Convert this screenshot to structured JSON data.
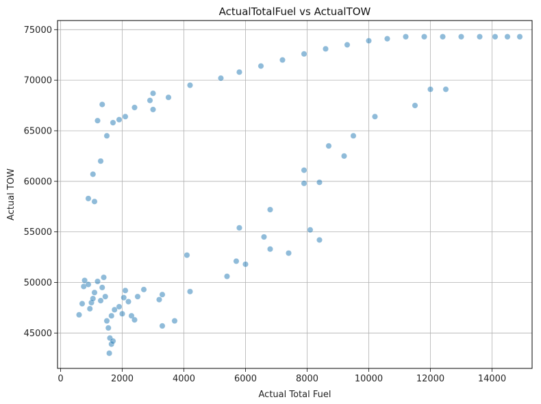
{
  "chart_data": {
    "type": "scatter",
    "title": "ActualTotalFuel vs ActualTOW",
    "xlabel": "Actual Total Fuel",
    "ylabel": "Actual TOW",
    "xlim": [
      -100,
      15300
    ],
    "ylim": [
      41500,
      75900
    ],
    "xticks": [
      0,
      2000,
      4000,
      6000,
      8000,
      10000,
      12000,
      14000
    ],
    "xtick_labels": [
      "0",
      "2000",
      "4000",
      "6000",
      "8000",
      "10000",
      "12000",
      "14000"
    ],
    "yticks": [
      45000,
      50000,
      55000,
      60000,
      65000,
      70000,
      75000
    ],
    "ytick_labels": [
      "45000",
      "50000",
      "55000",
      "60000",
      "65000",
      "70000",
      "75000"
    ],
    "grid": true,
    "marker_color": "#1f77b4",
    "marker_alpha": 0.5,
    "series": [
      {
        "points": [
          [
            600,
            46800
          ],
          [
            700,
            47900
          ],
          [
            750,
            49600
          ],
          [
            780,
            50200
          ],
          [
            900,
            49800
          ],
          [
            950,
            47400
          ],
          [
            1000,
            48000
          ],
          [
            1050,
            48400
          ],
          [
            1100,
            49000
          ],
          [
            1200,
            50100
          ],
          [
            1300,
            48200
          ],
          [
            1350,
            49500
          ],
          [
            1400,
            50500
          ],
          [
            1450,
            48600
          ],
          [
            1500,
            46200
          ],
          [
            1550,
            45500
          ],
          [
            1600,
            44500
          ],
          [
            1580,
            43000
          ],
          [
            1650,
            43900
          ],
          [
            1700,
            44200
          ],
          [
            1650,
            46700
          ],
          [
            1750,
            47300
          ],
          [
            1900,
            47600
          ],
          [
            2000,
            46900
          ],
          [
            2050,
            48500
          ],
          [
            2100,
            49200
          ],
          [
            2200,
            48100
          ],
          [
            2300,
            46700
          ],
          [
            2400,
            46300
          ],
          [
            2500,
            48600
          ],
          [
            2700,
            49300
          ],
          [
            3200,
            48300
          ],
          [
            3300,
            48800
          ],
          [
            3300,
            45700
          ],
          [
            3700,
            46200
          ],
          [
            4200,
            49100
          ],
          [
            4100,
            52700
          ],
          [
            5400,
            50600
          ],
          [
            5700,
            52100
          ],
          [
            6000,
            51800
          ],
          [
            6600,
            54500
          ],
          [
            6800,
            53300
          ],
          [
            7400,
            52900
          ],
          [
            8100,
            55200
          ],
          [
            8400,
            54200
          ],
          [
            7900,
            61100
          ],
          [
            7900,
            59800
          ],
          [
            8400,
            59900
          ],
          [
            6800,
            57200
          ],
          [
            5800,
            55400
          ],
          [
            1050,
            60700
          ],
          [
            900,
            58300
          ],
          [
            1100,
            58000
          ],
          [
            1300,
            62000
          ],
          [
            1350,
            67600
          ],
          [
            1200,
            66000
          ],
          [
            1500,
            64500
          ],
          [
            1700,
            65800
          ],
          [
            1900,
            66100
          ],
          [
            2100,
            66400
          ],
          [
            2400,
            67300
          ],
          [
            2900,
            68000
          ],
          [
            3000,
            67100
          ],
          [
            3500,
            68300
          ],
          [
            3000,
            68700
          ],
          [
            4200,
            69500
          ],
          [
            5200,
            70200
          ],
          [
            5800,
            70800
          ],
          [
            6500,
            71400
          ],
          [
            7200,
            72000
          ],
          [
            7900,
            72600
          ],
          [
            8600,
            73100
          ],
          [
            9300,
            73500
          ],
          [
            10000,
            73900
          ],
          [
            10600,
            74100
          ],
          [
            11200,
            74300
          ],
          [
            11800,
            74300
          ],
          [
            12400,
            74300
          ],
          [
            13000,
            74300
          ],
          [
            13600,
            74300
          ],
          [
            14100,
            74300
          ],
          [
            14500,
            74300
          ],
          [
            14900,
            74300
          ],
          [
            12000,
            69100
          ],
          [
            12500,
            69100
          ],
          [
            11500,
            67500
          ],
          [
            10200,
            66400
          ],
          [
            9200,
            62500
          ],
          [
            8700,
            63500
          ],
          [
            9500,
            64500
          ]
        ]
      }
    ]
  }
}
